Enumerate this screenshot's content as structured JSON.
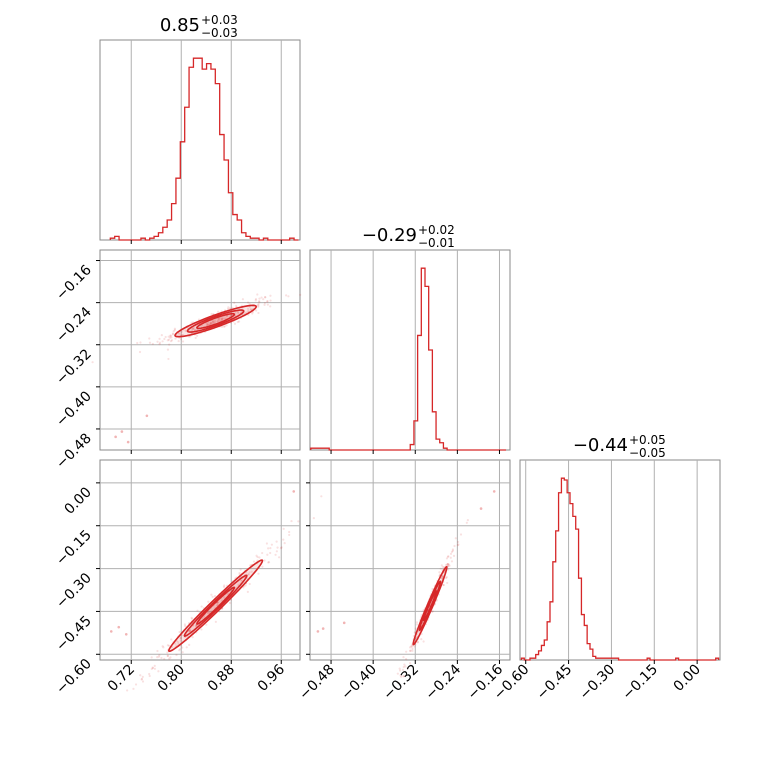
{
  "colors": {
    "series": "#d62728",
    "grid": "#b0b0b0",
    "frame": "#8a8a8a"
  },
  "chart_data": {
    "type": "corner",
    "parameters": [
      {
        "median": "0.85",
        "plus": "+0.03",
        "minus": "−0.03",
        "range": [
          0.67,
          0.99
        ],
        "ticks": [
          0.72,
          0.8,
          0.88,
          0.96
        ],
        "tick_labels": [
          "0.72",
          "0.80",
          "0.88",
          "0.96"
        ],
        "hist": {
          "x": [
            0.69,
            0.697,
            0.704,
            0.711,
            0.718,
            0.725,
            0.732,
            0.739,
            0.746,
            0.753,
            0.76,
            0.767,
            0.774,
            0.781,
            0.788,
            0.795,
            0.802,
            0.809,
            0.816,
            0.823,
            0.83,
            0.837,
            0.844,
            0.851,
            0.858,
            0.865,
            0.872,
            0.879,
            0.886,
            0.893,
            0.9,
            0.907,
            0.914,
            0.921,
            0.928,
            0.935,
            0.942,
            0.949,
            0.956,
            0.963,
            0.97,
            0.977,
            0.984
          ],
          "y": [
            1,
            2,
            0,
            0,
            0,
            0,
            0,
            1,
            0,
            1,
            2,
            4,
            7,
            11,
            20,
            34,
            54,
            73,
            95,
            100,
            100,
            94,
            97,
            94,
            86,
            58,
            44,
            26,
            14,
            11,
            4,
            2,
            1,
            1,
            0,
            1,
            0,
            0,
            0,
            0,
            0,
            1,
            0
          ]
        }
      },
      {
        "median": "−0.29",
        "plus": "+0.02",
        "minus": "−0.01",
        "range": [
          -0.52,
          -0.14
        ],
        "ticks": [
          -0.48,
          -0.4,
          -0.32,
          -0.24,
          -0.16
        ],
        "tick_labels": [
          "−0.48",
          "−0.40",
          "−0.32",
          "−0.24",
          "−0.16"
        ],
        "hist": {
          "x": [
            -0.515,
            -0.508,
            -0.501,
            -0.494,
            -0.487,
            -0.48,
            -0.473,
            -0.466,
            -0.459,
            -0.452,
            -0.445,
            -0.438,
            -0.431,
            -0.424,
            -0.417,
            -0.41,
            -0.403,
            -0.396,
            -0.389,
            -0.382,
            -0.375,
            -0.368,
            -0.361,
            -0.354,
            -0.347,
            -0.34,
            -0.333,
            -0.326,
            -0.319,
            -0.312,
            -0.305,
            -0.298,
            -0.291,
            -0.284,
            -0.277,
            -0.27,
            -0.263,
            -0.256,
            -0.249,
            -0.242,
            -0.235,
            -0.228,
            -0.221,
            -0.214,
            -0.207,
            -0.2,
            -0.193,
            -0.186,
            -0.179,
            -0.172,
            -0.165,
            -0.158,
            -0.151
          ],
          "y": [
            1,
            1,
            1,
            1,
            1,
            0,
            0,
            0,
            0,
            0,
            0,
            0,
            0,
            0,
            0,
            0,
            0,
            0,
            0,
            0,
            0,
            0,
            0,
            0,
            0,
            0,
            0,
            3,
            16,
            63,
            100,
            90,
            55,
            21,
            6,
            4,
            1,
            0,
            0,
            0,
            0,
            0,
            0,
            0,
            0,
            0,
            0,
            0,
            0,
            0,
            0,
            0,
            0
          ]
        }
      },
      {
        "median": "−0.44",
        "plus": "+0.05",
        "minus": "−0.05",
        "range": [
          -0.62,
          0.08
        ],
        "ticks": [
          -0.6,
          -0.45,
          -0.3,
          -0.15,
          0.0
        ],
        "tick_labels": [
          "−0.60",
          "−0.45",
          "−0.30",
          "−0.15",
          "0.00"
        ],
        "hist": {
          "x": [
            -0.61,
            -0.6,
            -0.59,
            -0.58,
            -0.57,
            -0.56,
            -0.55,
            -0.54,
            -0.53,
            -0.52,
            -0.51,
            -0.5,
            -0.49,
            -0.48,
            -0.47,
            -0.46,
            -0.45,
            -0.44,
            -0.43,
            -0.42,
            -0.41,
            -0.4,
            -0.39,
            -0.38,
            -0.37,
            -0.36,
            -0.35,
            -0.34,
            -0.33,
            -0.32,
            -0.31,
            -0.3,
            -0.29,
            -0.28,
            -0.27,
            -0.26,
            -0.25,
            -0.24,
            -0.23,
            -0.22,
            -0.21,
            -0.2,
            -0.19,
            -0.18,
            -0.17,
            -0.16,
            -0.15,
            -0.14,
            -0.13,
            -0.12,
            -0.11,
            -0.1,
            -0.09,
            -0.08,
            -0.07,
            -0.06,
            -0.05,
            -0.04,
            -0.03,
            -0.02,
            -0.01,
            0.0,
            0.01,
            0.02,
            0.03,
            0.04,
            0.05,
            0.06,
            0.07
          ],
          "y": [
            1,
            0,
            0,
            1,
            1,
            3,
            5,
            8,
            11,
            21,
            32,
            54,
            71,
            92,
            100,
            99,
            92,
            86,
            79,
            72,
            45,
            25,
            19,
            9,
            6,
            2,
            1,
            1,
            1,
            1,
            1,
            1,
            1,
            1,
            0,
            0,
            0,
            0,
            0,
            0,
            0,
            0,
            0,
            0,
            1,
            0,
            0,
            0,
            0,
            0,
            0,
            0,
            0,
            0,
            1,
            0,
            0,
            0,
            0,
            0,
            0,
            0,
            0,
            0,
            0,
            0,
            0,
            0,
            1
          ]
        }
      }
    ],
    "pairs": [
      {
        "xi": 0,
        "yi": 1,
        "center": [
          0.855,
          -0.275
        ],
        "slope": 0.42,
        "contours": [
          [
            0.03,
            0.006
          ],
          [
            0.045,
            0.009
          ],
          [
            0.065,
            0.012
          ]
        ],
        "outliers": [
          [
            0.695,
            -0.495
          ],
          [
            0.705,
            -0.485
          ],
          [
            0.715,
            -0.505
          ],
          [
            0.745,
            -0.455
          ]
        ]
      },
      {
        "xi": 0,
        "yi": 2,
        "center": [
          0.855,
          -0.43
        ],
        "slope": 2.1,
        "contours": [
          [
            0.03,
            0.012
          ],
          [
            0.05,
            0.018
          ],
          [
            0.075,
            0.026
          ]
        ],
        "outliers": [
          [
            0.688,
            -0.52
          ],
          [
            0.7,
            -0.505
          ],
          [
            0.712,
            -0.53
          ],
          [
            0.98,
            -0.03
          ]
        ]
      },
      {
        "xi": 1,
        "yi": 2,
        "center": [
          -0.292,
          -0.43
        ],
        "slope": 4.2,
        "contours": [
          [
            0.012,
            0.01
          ],
          [
            0.02,
            0.016
          ],
          [
            0.032,
            0.024
          ]
        ],
        "outliers": [
          [
            -0.505,
            -0.52
          ],
          [
            -0.495,
            -0.51
          ],
          [
            -0.455,
            -0.49
          ],
          [
            -0.17,
            -0.03
          ],
          [
            -0.195,
            -0.09
          ]
        ]
      }
    ]
  }
}
